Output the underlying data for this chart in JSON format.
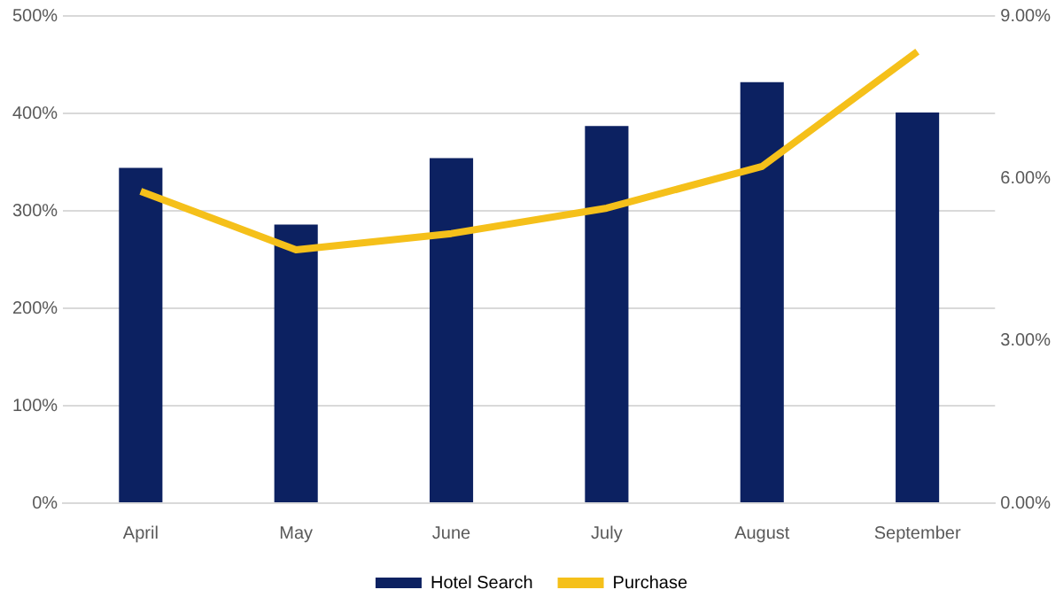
{
  "chart_data": {
    "type": "bar",
    "categories": [
      "April",
      "May",
      "June",
      "July",
      "August",
      "September"
    ],
    "series": [
      {
        "name": "Hotel Search",
        "color": "#0c2161",
        "values": [
          344,
          286,
          354,
          387,
          432,
          401
        ]
      },
      {
        "name": "Purchase",
        "type": "line",
        "axis": "y2",
        "color": "#f5c01a",
        "values": [
          5.76,
          4.68,
          4.98,
          5.45,
          6.22,
          8.34
        ]
      }
    ],
    "ylim": [
      0,
      500
    ],
    "yticks": [
      {
        "value": 0,
        "label": "0%"
      },
      {
        "value": 100,
        "label": "100%"
      },
      {
        "value": 200,
        "label": "200%"
      },
      {
        "value": 300,
        "label": "300%"
      },
      {
        "value": 400,
        "label": "400%"
      },
      {
        "value": 500,
        "label": "500%"
      }
    ],
    "y2lim": [
      0,
      9
    ],
    "y2ticks": [
      {
        "value": 0,
        "label": "0.00%"
      },
      {
        "value": 3,
        "label": "3.00%"
      },
      {
        "value": 6,
        "label": "6.00%"
      },
      {
        "value": 9,
        "label": "9.00%"
      }
    ],
    "grid": "y",
    "legend": "bottom",
    "marker": "none"
  }
}
